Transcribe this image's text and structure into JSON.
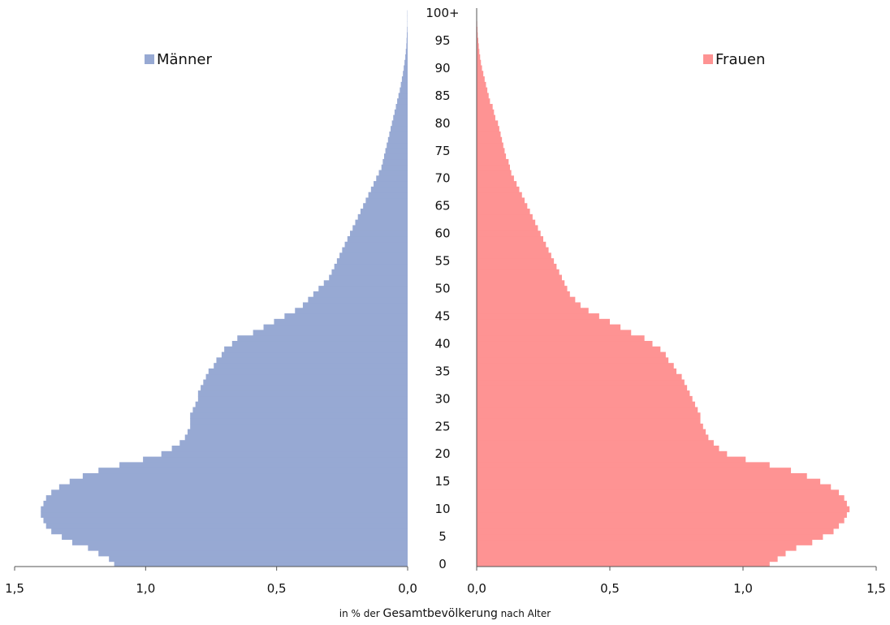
{
  "chart_data": {
    "type": "population-pyramid",
    "xlabel_parts": [
      "in % der ",
      "Gesamtbevölkerung",
      " nach Alter"
    ],
    "x_ticks": [
      "0,0",
      "0,5",
      "1,0",
      "1,5"
    ],
    "xlim": [
      0,
      1.5
    ],
    "age_labels": [
      "0",
      "5",
      "10",
      "15",
      "20",
      "25",
      "30",
      "35",
      "40",
      "45",
      "50",
      "55",
      "60",
      "65",
      "70",
      "75",
      "80",
      "85",
      "90",
      "95",
      "100+"
    ],
    "ages": [
      0,
      1,
      2,
      3,
      4,
      5,
      6,
      7,
      8,
      9,
      10,
      11,
      12,
      13,
      14,
      15,
      16,
      17,
      18,
      19,
      20,
      21,
      22,
      23,
      24,
      25,
      26,
      27,
      28,
      29,
      30,
      31,
      32,
      33,
      34,
      35,
      36,
      37,
      38,
      39,
      40,
      41,
      42,
      43,
      44,
      45,
      46,
      47,
      48,
      49,
      50,
      51,
      52,
      53,
      54,
      55,
      56,
      57,
      58,
      59,
      60,
      61,
      62,
      63,
      64,
      65,
      66,
      67,
      68,
      69,
      70,
      71,
      72,
      73,
      74,
      75,
      76,
      77,
      78,
      79,
      80,
      81,
      82,
      83,
      84,
      85,
      86,
      87,
      88,
      89,
      90,
      91,
      92,
      93,
      94,
      95,
      96,
      97,
      98,
      99,
      100
    ],
    "series": [
      {
        "name": "Männer",
        "side": "left",
        "color": "#97a9d3",
        "values": [
          1.12,
          1.14,
          1.18,
          1.22,
          1.28,
          1.32,
          1.36,
          1.38,
          1.39,
          1.4,
          1.4,
          1.39,
          1.38,
          1.36,
          1.33,
          1.29,
          1.24,
          1.18,
          1.1,
          1.01,
          0.94,
          0.9,
          0.87,
          0.85,
          0.84,
          0.83,
          0.83,
          0.83,
          0.82,
          0.81,
          0.8,
          0.8,
          0.79,
          0.78,
          0.77,
          0.76,
          0.74,
          0.73,
          0.71,
          0.7,
          0.67,
          0.65,
          0.59,
          0.55,
          0.51,
          0.47,
          0.43,
          0.4,
          0.38,
          0.36,
          0.34,
          0.32,
          0.3,
          0.29,
          0.28,
          0.27,
          0.26,
          0.25,
          0.24,
          0.23,
          0.22,
          0.21,
          0.2,
          0.19,
          0.18,
          0.17,
          0.16,
          0.15,
          0.14,
          0.13,
          0.12,
          0.11,
          0.1,
          0.095,
          0.09,
          0.085,
          0.08,
          0.075,
          0.07,
          0.065,
          0.06,
          0.055,
          0.05,
          0.045,
          0.04,
          0.035,
          0.03,
          0.026,
          0.022,
          0.018,
          0.015,
          0.012,
          0.009,
          0.007,
          0.005,
          0.004,
          0.003,
          0.002,
          0.001,
          0.001,
          0.001
        ]
      },
      {
        "name": "Frauen",
        "side": "right",
        "color": "#fe9393",
        "values": [
          1.1,
          1.13,
          1.16,
          1.2,
          1.26,
          1.3,
          1.34,
          1.36,
          1.38,
          1.39,
          1.4,
          1.39,
          1.38,
          1.36,
          1.33,
          1.29,
          1.24,
          1.18,
          1.1,
          1.01,
          0.94,
          0.91,
          0.89,
          0.87,
          0.86,
          0.85,
          0.84,
          0.84,
          0.83,
          0.82,
          0.81,
          0.8,
          0.79,
          0.78,
          0.77,
          0.75,
          0.74,
          0.72,
          0.71,
          0.69,
          0.66,
          0.63,
          0.58,
          0.54,
          0.5,
          0.46,
          0.42,
          0.39,
          0.37,
          0.35,
          0.34,
          0.33,
          0.32,
          0.31,
          0.3,
          0.29,
          0.28,
          0.27,
          0.26,
          0.25,
          0.24,
          0.23,
          0.22,
          0.21,
          0.2,
          0.19,
          0.18,
          0.17,
          0.16,
          0.15,
          0.14,
          0.13,
          0.125,
          0.12,
          0.11,
          0.105,
          0.1,
          0.095,
          0.09,
          0.085,
          0.08,
          0.07,
          0.065,
          0.06,
          0.05,
          0.045,
          0.04,
          0.035,
          0.03,
          0.025,
          0.02,
          0.016,
          0.013,
          0.01,
          0.008,
          0.006,
          0.004,
          0.003,
          0.002,
          0.001,
          0.001
        ]
      }
    ]
  }
}
